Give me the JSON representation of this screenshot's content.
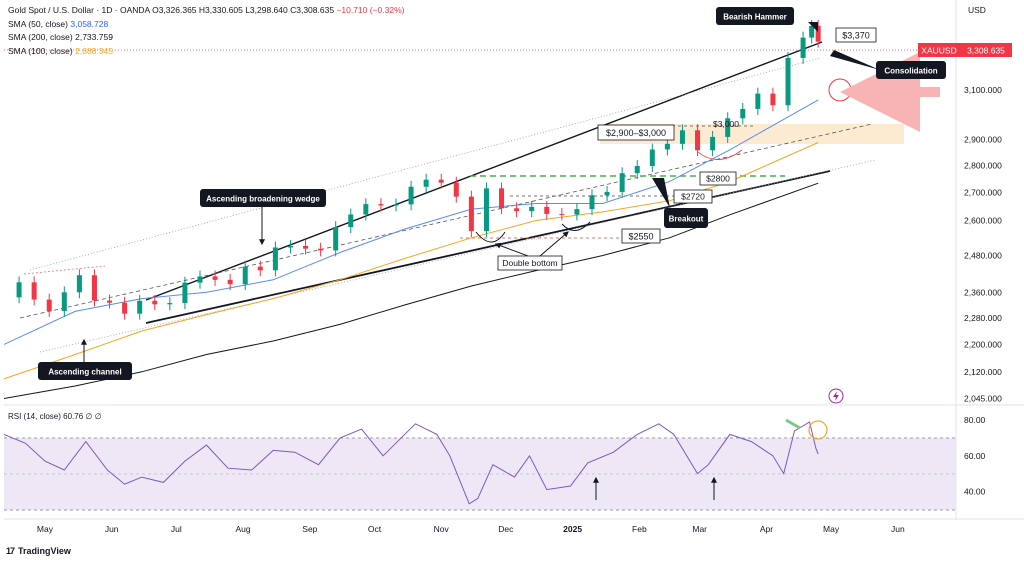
{
  "header": {
    "title_line": "Gold Spot / U.S. Dollar · 1D · OANDA",
    "ohlc": "O3,326.365  H3,330.605  L3,298.640  C3,308.635",
    "change": "−10.710 (−0.32%)",
    "sma50_label": "SMA (50, close)",
    "sma50_value": "3,058.728",
    "sma200_label": "SMA (200, close)",
    "sma200_value": "2,733.759",
    "sma100_label": "SMA (100, close)",
    "sma100_value": "2,888.345"
  },
  "currency": "USD",
  "symbol_tag": {
    "symbol": "XAUUSD",
    "price": "3,308.635",
    "color": "#f23645"
  },
  "rsi_header": "RSI (14, close)  60.76  ∅  ∅",
  "logo_text": "TradingView",
  "colors": {
    "up": "#089981",
    "down": "#f23645",
    "sma50": "#5b8bf5",
    "sma100": "#f5a623",
    "sma200": "#131722",
    "rsi": "#7e57c2",
    "rsi_band": "#ede7f6",
    "zone": "#fde7c9",
    "green_dash": "#4caf50"
  },
  "annotations": {
    "bearish_hammer": "Bearish Hammer",
    "consolidation": "Consolidation",
    "ascending_broadening_wedge": "Ascending broadening wedge",
    "ascending_channel": "Ascending channel",
    "double_bottom": "Double bottom",
    "breakout": "Breakout",
    "lvl_3370": "$3,370",
    "lvl_2900_3000": "$2,900–$3,000",
    "lvl_3000": "$3,000",
    "lvl_2800": "$2800",
    "lvl_2720": "$2720",
    "lvl_2550": "$2550"
  },
  "chart_data": {
    "type": "line",
    "title": "Gold Spot / U.S. Dollar · 1D · OANDA",
    "y_scale": "log",
    "y_ticks": [
      "3,100.000",
      "2,900.000",
      "2,800.000",
      "2,700.000",
      "2,600.000",
      "2,480.000",
      "2,360.000",
      "2,280.000",
      "2,200.000",
      "2,120.000",
      "2,045.000"
    ],
    "y_tick_values": [
      3100,
      2900,
      2800,
      2700,
      2600,
      2480,
      2360,
      2280,
      2200,
      2120,
      2045
    ],
    "ylim": [
      2030,
      3500
    ],
    "x_ticks": [
      "May",
      "Jun",
      "Jul",
      "Aug",
      "Sep",
      "Oct",
      "Nov",
      "Dec",
      "2025",
      "Feb",
      "Mar",
      "Apr",
      "May",
      "Jun"
    ],
    "x_tick_dates": [
      "2024-05-01",
      "2024-06-01",
      "2024-07-01",
      "2024-08-01",
      "2024-09-01",
      "2024-10-01",
      "2024-11-01",
      "2024-12-01",
      "2025-01-01",
      "2025-02-01",
      "2025-03-01",
      "2025-04-01",
      "2025-05-01",
      "2025-06-01"
    ],
    "xlim": [
      "2024-04-12",
      "2025-06-28"
    ],
    "price_close": [
      [
        "2024-04-12",
        2344
      ],
      [
        "2024-04-19",
        2392
      ],
      [
        "2024-04-26",
        2337
      ],
      [
        "2024-05-03",
        2301
      ],
      [
        "2024-05-10",
        2360
      ],
      [
        "2024-05-17",
        2415
      ],
      [
        "2024-05-24",
        2334
      ],
      [
        "2024-05-31",
        2327
      ],
      [
        "2024-06-07",
        2293
      ],
      [
        "2024-06-14",
        2333
      ],
      [
        "2024-06-21",
        2322
      ],
      [
        "2024-06-28",
        2326
      ],
      [
        "2024-07-05",
        2391
      ],
      [
        "2024-07-12",
        2411
      ],
      [
        "2024-07-19",
        2400
      ],
      [
        "2024-07-26",
        2386
      ],
      [
        "2024-08-02",
        2443
      ],
      [
        "2024-08-09",
        2431
      ],
      [
        "2024-08-16",
        2507
      ],
      [
        "2024-08-23",
        2512
      ],
      [
        "2024-08-30",
        2503
      ],
      [
        "2024-09-06",
        2497
      ],
      [
        "2024-09-13",
        2577
      ],
      [
        "2024-09-20",
        2621
      ],
      [
        "2024-09-27",
        2658
      ],
      [
        "2024-10-04",
        2653
      ],
      [
        "2024-10-11",
        2657
      ],
      [
        "2024-10-18",
        2721
      ],
      [
        "2024-10-25",
        2747
      ],
      [
        "2024-11-01",
        2736
      ],
      [
        "2024-11-08",
        2685
      ],
      [
        "2024-11-15",
        2563
      ],
      [
        "2024-11-22",
        2715
      ],
      [
        "2024-11-29",
        2643
      ],
      [
        "2024-12-06",
        2633
      ],
      [
        "2024-12-13",
        2648
      ],
      [
        "2024-12-20",
        2623
      ],
      [
        "2024-12-27",
        2621
      ],
      [
        "2025-01-03",
        2640
      ],
      [
        "2025-01-10",
        2690
      ],
      [
        "2025-01-17",
        2702
      ],
      [
        "2025-01-24",
        2771
      ],
      [
        "2025-01-31",
        2798
      ],
      [
        "2025-02-07",
        2861
      ],
      [
        "2025-02-14",
        2883
      ],
      [
        "2025-02-21",
        2936
      ],
      [
        "2025-02-28",
        2858
      ],
      [
        "2025-03-07",
        2910
      ],
      [
        "2025-03-14",
        2984
      ],
      [
        "2025-03-21",
        3022
      ],
      [
        "2025-03-28",
        3085
      ],
      [
        "2025-04-04",
        3037
      ],
      [
        "2025-04-11",
        3237
      ],
      [
        "2025-04-18",
        3327
      ],
      [
        "2025-04-22",
        3380
      ],
      [
        "2025-04-25",
        3309
      ]
    ],
    "sma_50": [
      [
        "2024-04-12",
        2200
      ],
      [
        "2024-05-15",
        2300
      ],
      [
        "2024-06-15",
        2340
      ],
      [
        "2024-07-15",
        2360
      ],
      [
        "2024-08-15",
        2400
      ],
      [
        "2024-09-15",
        2490
      ],
      [
        "2024-10-15",
        2570
      ],
      [
        "2024-11-15",
        2640
      ],
      [
        "2024-12-15",
        2660
      ],
      [
        "2025-01-15",
        2660
      ],
      [
        "2025-02-15",
        2740
      ],
      [
        "2025-03-15",
        2860
      ],
      [
        "2025-04-25",
        3059
      ]
    ],
    "sma_100": [
      [
        "2024-04-12",
        2100
      ],
      [
        "2024-05-15",
        2170
      ],
      [
        "2024-06-15",
        2240
      ],
      [
        "2024-07-15",
        2290
      ],
      [
        "2024-08-15",
        2340
      ],
      [
        "2024-09-15",
        2400
      ],
      [
        "2024-10-15",
        2470
      ],
      [
        "2024-11-15",
        2540
      ],
      [
        "2024-12-15",
        2600
      ],
      [
        "2025-01-15",
        2630
      ],
      [
        "2025-02-15",
        2670
      ],
      [
        "2025-03-15",
        2740
      ],
      [
        "2025-04-25",
        2888
      ]
    ],
    "sma_200": [
      [
        "2024-04-12",
        2045
      ],
      [
        "2024-05-15",
        2080
      ],
      [
        "2024-06-15",
        2120
      ],
      [
        "2024-07-15",
        2170
      ],
      [
        "2024-08-15",
        2210
      ],
      [
        "2024-09-15",
        2260
      ],
      [
        "2024-10-15",
        2320
      ],
      [
        "2024-11-15",
        2380
      ],
      [
        "2024-12-15",
        2430
      ],
      [
        "2025-01-15",
        2480
      ],
      [
        "2025-02-15",
        2540
      ],
      [
        "2025-03-15",
        2620
      ],
      [
        "2025-04-25",
        2734
      ]
    ],
    "rsi": {
      "name": "RSI (14, close)",
      "last": 60.76,
      "levels": [
        70,
        30
      ],
      "y_ticks": [
        "80.00",
        "60.00",
        "40.00"
      ],
      "y_tick_values": [
        80,
        60,
        40
      ],
      "ylim": [
        25,
        88
      ],
      "values": [
        [
          "2024-04-12",
          72
        ],
        [
          "2024-04-22",
          67
        ],
        [
          "2024-05-01",
          57
        ],
        [
          "2024-05-10",
          52
        ],
        [
          "2024-05-20",
          68
        ],
        [
          "2024-05-30",
          52
        ],
        [
          "2024-06-07",
          44
        ],
        [
          "2024-06-15",
          48
        ],
        [
          "2024-06-25",
          45
        ],
        [
          "2024-07-05",
          57
        ],
        [
          "2024-07-15",
          66
        ],
        [
          "2024-07-25",
          53
        ],
        [
          "2024-08-05",
          52
        ],
        [
          "2024-08-15",
          63
        ],
        [
          "2024-08-25",
          62
        ],
        [
          "2024-09-05",
          55
        ],
        [
          "2024-09-15",
          70
        ],
        [
          "2024-09-25",
          75
        ],
        [
          "2024-10-05",
          60
        ],
        [
          "2024-10-20",
          78
        ],
        [
          "2024-10-30",
          72
        ],
        [
          "2024-11-05",
          60
        ],
        [
          "2024-11-14",
          33
        ],
        [
          "2024-11-18",
          36
        ],
        [
          "2024-11-25",
          55
        ],
        [
          "2024-12-05",
          48
        ],
        [
          "2024-12-12",
          60
        ],
        [
          "2024-12-20",
          41
        ],
        [
          "2024-12-31",
          43
        ],
        [
          "2025-01-08",
          56
        ],
        [
          "2025-01-20",
          62
        ],
        [
          "2025-01-31",
          72
        ],
        [
          "2025-02-10",
          78
        ],
        [
          "2025-02-17",
          72
        ],
        [
          "2025-02-28",
          50
        ],
        [
          "2025-03-05",
          55
        ],
        [
          "2025-03-15",
          72
        ],
        [
          "2025-03-25",
          68
        ],
        [
          "2025-04-04",
          60
        ],
        [
          "2025-04-09",
          50
        ],
        [
          "2025-04-14",
          74
        ],
        [
          "2025-04-21",
          79
        ],
        [
          "2025-04-24",
          64
        ],
        [
          "2025-04-25",
          61
        ]
      ]
    }
  }
}
